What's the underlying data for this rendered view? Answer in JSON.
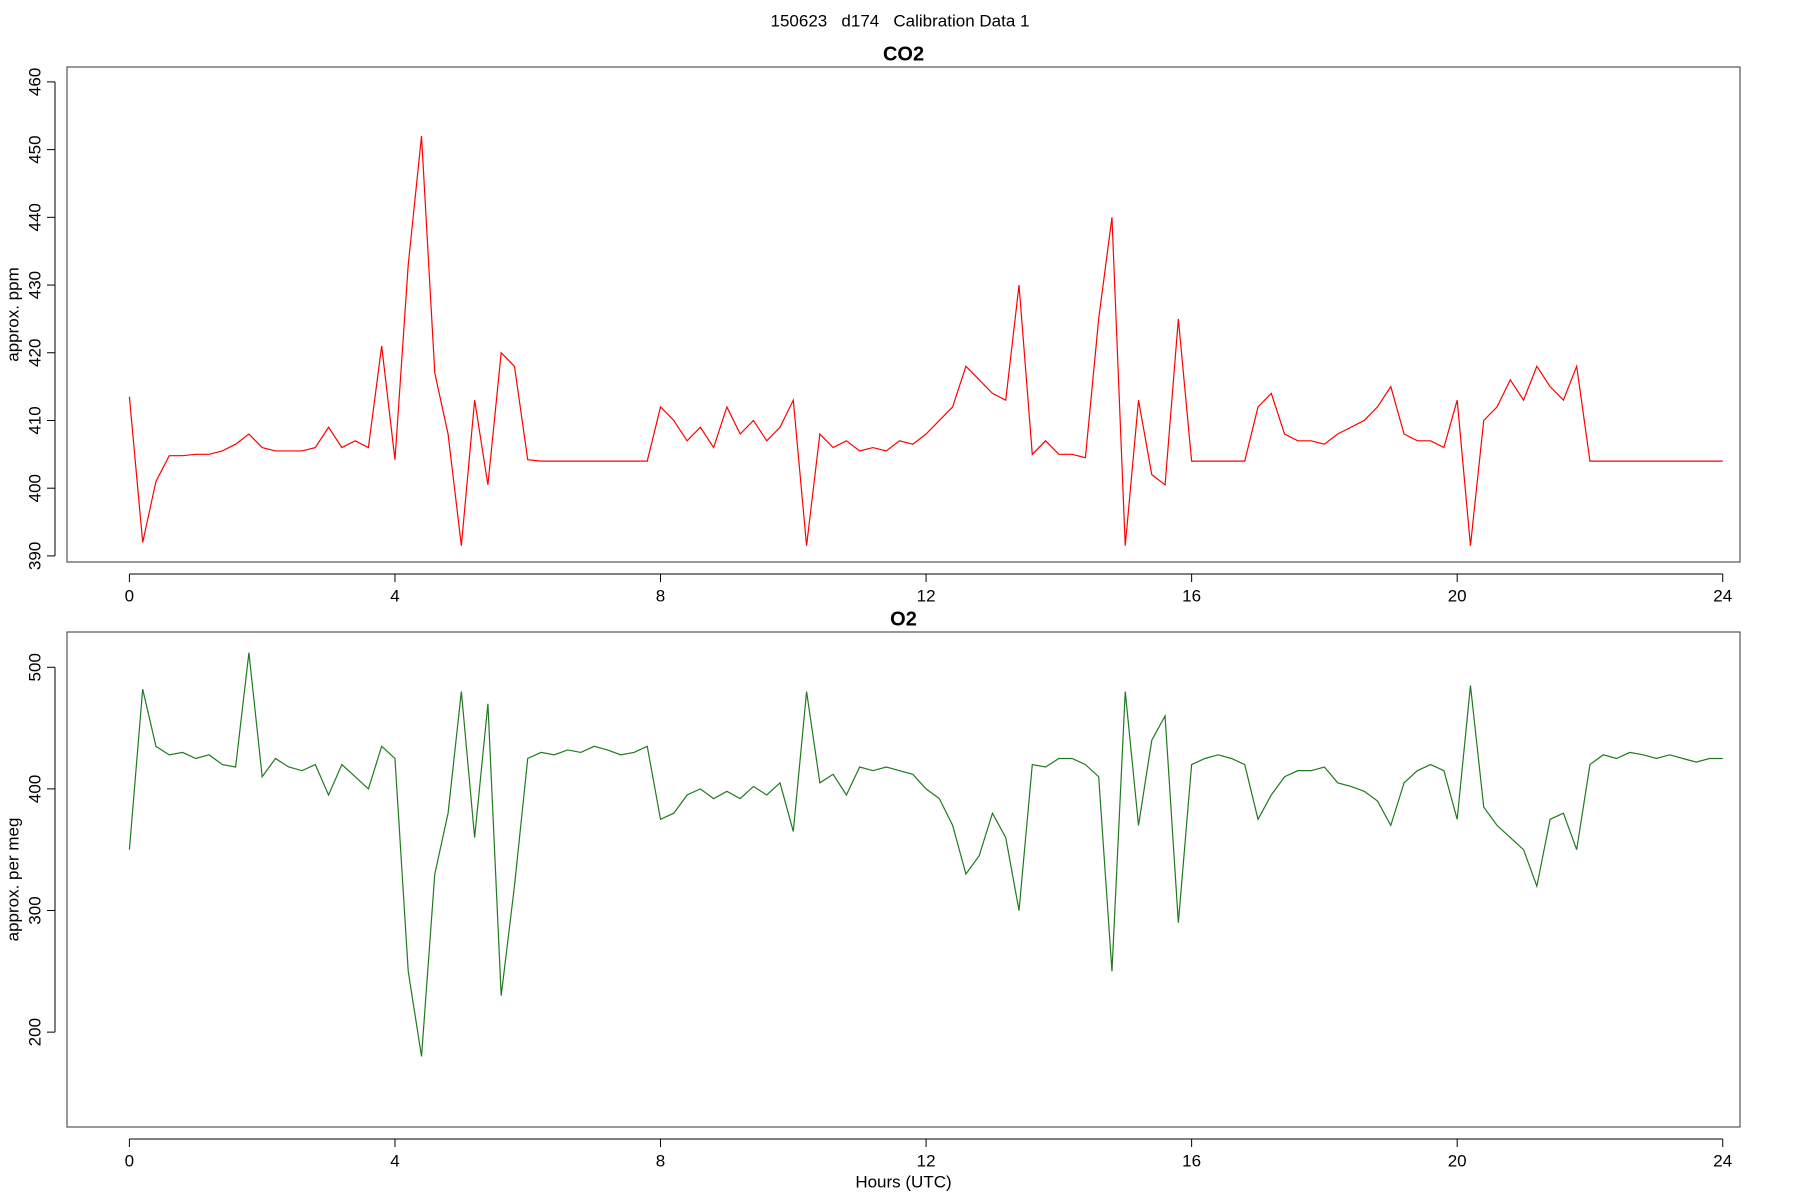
{
  "title": "150623   d174   Calibration Data 1",
  "chart_data": [
    {
      "type": "line",
      "title": "CO2",
      "ylabel": "approx. ppm",
      "x": [
        0,
        0.2,
        0.4,
        0.6,
        0.8,
        1,
        1.2,
        1.4,
        1.6,
        1.8,
        2,
        2.2,
        2.4,
        2.6,
        2.8,
        3,
        3.2,
        3.4,
        3.6,
        3.8,
        4,
        4.2,
        4.4,
        4.6,
        4.8,
        5,
        5.2,
        5.4,
        5.6,
        5.8,
        6,
        6.2,
        6.4,
        6.6,
        6.8,
        7,
        7.2,
        7.4,
        7.6,
        7.8,
        8,
        8.2,
        8.4,
        8.6,
        8.8,
        9,
        9.2,
        9.4,
        9.6,
        9.8,
        10,
        10.2,
        10.4,
        10.6,
        10.8,
        11,
        11.2,
        11.4,
        11.6,
        11.8,
        12,
        12.2,
        12.4,
        12.6,
        12.8,
        13,
        13.2,
        13.4,
        13.6,
        13.8,
        14,
        14.2,
        14.4,
        14.6,
        14.8,
        15,
        15.2,
        15.4,
        15.6,
        15.8,
        16,
        16.2,
        16.4,
        16.6,
        16.8,
        17,
        17.2,
        17.4,
        17.6,
        17.8,
        18,
        18.2,
        18.4,
        18.6,
        18.8,
        19,
        19.2,
        19.4,
        19.6,
        19.8,
        20,
        20.2,
        20.4,
        20.6,
        20.8,
        21,
        21.2,
        21.4,
        21.6,
        21.8,
        22,
        22.2,
        22.4,
        22.6,
        22.8,
        23,
        23.2,
        23.4,
        23.6,
        23.8,
        24
      ],
      "series": [
        {
          "name": "CO2",
          "color": "#ff0000",
          "values": [
            413.5,
            392,
            401,
            404.8,
            404.8,
            405,
            405,
            405.5,
            406.5,
            408,
            406,
            405.5,
            405.5,
            405.5,
            406,
            409,
            406,
            407,
            406,
            421,
            404.2,
            433,
            452,
            417,
            408,
            391.5,
            413,
            400.5,
            420,
            418,
            404.2,
            404,
            404,
            404,
            404,
            404,
            404,
            404,
            404,
            404,
            412,
            410,
            407,
            409,
            406,
            412,
            408,
            410,
            407,
            409,
            413,
            391.5,
            408,
            406,
            407,
            405.5,
            406,
            405.5,
            407,
            406.5,
            408,
            410,
            412,
            418,
            416,
            414,
            413,
            430,
            405,
            407,
            405,
            405,
            404.5,
            425,
            440,
            391.5,
            413,
            402,
            400.5,
            425,
            404,
            404,
            404,
            404,
            404,
            412,
            414,
            408,
            407,
            407,
            406.5,
            408,
            409,
            410,
            412,
            415,
            408,
            407,
            407,
            406,
            413,
            391.5,
            410,
            412,
            416,
            413,
            418,
            415,
            413,
            418,
            404,
            404,
            404,
            404,
            404,
            404,
            404,
            404,
            404,
            404,
            404
          ]
        }
      ],
      "xlim": [
        -0.94,
        24.26
      ],
      "xticks": [
        0,
        4,
        8,
        12,
        16,
        20,
        24
      ],
      "ylim": [
        389.1,
        462.2
      ],
      "yticks": [
        390,
        400,
        410,
        420,
        430,
        440,
        450,
        460
      ]
    },
    {
      "type": "line",
      "title": "O2",
      "ylabel": "approx. per meg",
      "xlabel": "Hours (UTC)",
      "x": [
        0,
        0.2,
        0.4,
        0.6,
        0.8,
        1,
        1.2,
        1.4,
        1.6,
        1.8,
        2,
        2.2,
        2.4,
        2.6,
        2.8,
        3,
        3.2,
        3.4,
        3.6,
        3.8,
        4,
        4.2,
        4.4,
        4.6,
        4.8,
        5,
        5.2,
        5.4,
        5.6,
        5.8,
        6,
        6.2,
        6.4,
        6.6,
        6.8,
        7,
        7.2,
        7.4,
        7.6,
        7.8,
        8,
        8.2,
        8.4,
        8.6,
        8.8,
        9,
        9.2,
        9.4,
        9.6,
        9.8,
        10,
        10.2,
        10.4,
        10.6,
        10.8,
        11,
        11.2,
        11.4,
        11.6,
        11.8,
        12,
        12.2,
        12.4,
        12.6,
        12.8,
        13,
        13.2,
        13.4,
        13.6,
        13.8,
        14,
        14.2,
        14.4,
        14.6,
        14.8,
        15,
        15.2,
        15.4,
        15.6,
        15.8,
        16,
        16.2,
        16.4,
        16.6,
        16.8,
        17,
        17.2,
        17.4,
        17.6,
        17.8,
        18,
        18.2,
        18.4,
        18.6,
        18.8,
        19,
        19.2,
        19.4,
        19.6,
        19.8,
        20,
        20.2,
        20.4,
        20.6,
        20.8,
        21,
        21.2,
        21.4,
        21.6,
        21.8,
        22,
        22.2,
        22.4,
        22.6,
        22.8,
        23,
        23.2,
        23.4,
        23.6,
        23.8,
        24
      ],
      "series": [
        {
          "name": "O2",
          "color": "#1f7a1f",
          "values": [
            350,
            482,
            435,
            428,
            430,
            425,
            428,
            420,
            418,
            512,
            410,
            425,
            418,
            415,
            420,
            395,
            420,
            410,
            400,
            435,
            425,
            250,
            180,
            330,
            380,
            480,
            360,
            470,
            230,
            320,
            425,
            430,
            428,
            432,
            430,
            435,
            432,
            428,
            430,
            435,
            375,
            380,
            395,
            400,
            392,
            398,
            392,
            402,
            395,
            405,
            365,
            480,
            405,
            412,
            395,
            418,
            415,
            418,
            415,
            412,
            400,
            392,
            370,
            330,
            345,
            380,
            360,
            300,
            420,
            418,
            425,
            425,
            420,
            410,
            250,
            480,
            370,
            440,
            460,
            290,
            420,
            425,
            428,
            425,
            420,
            375,
            395,
            410,
            415,
            415,
            418,
            405,
            402,
            398,
            390,
            370,
            405,
            415,
            420,
            415,
            375,
            485,
            385,
            370,
            360,
            350,
            320,
            375,
            380,
            350,
            420,
            428,
            425,
            430,
            428,
            425,
            428,
            425,
            422,
            425,
            425
          ]
        }
      ],
      "xlim": [
        -0.94,
        24.26
      ],
      "xticks": [
        0,
        4,
        8,
        12,
        16,
        20,
        24
      ],
      "ylim": [
        122,
        529
      ],
      "yticks": [
        200,
        300,
        400,
        500
      ]
    }
  ]
}
